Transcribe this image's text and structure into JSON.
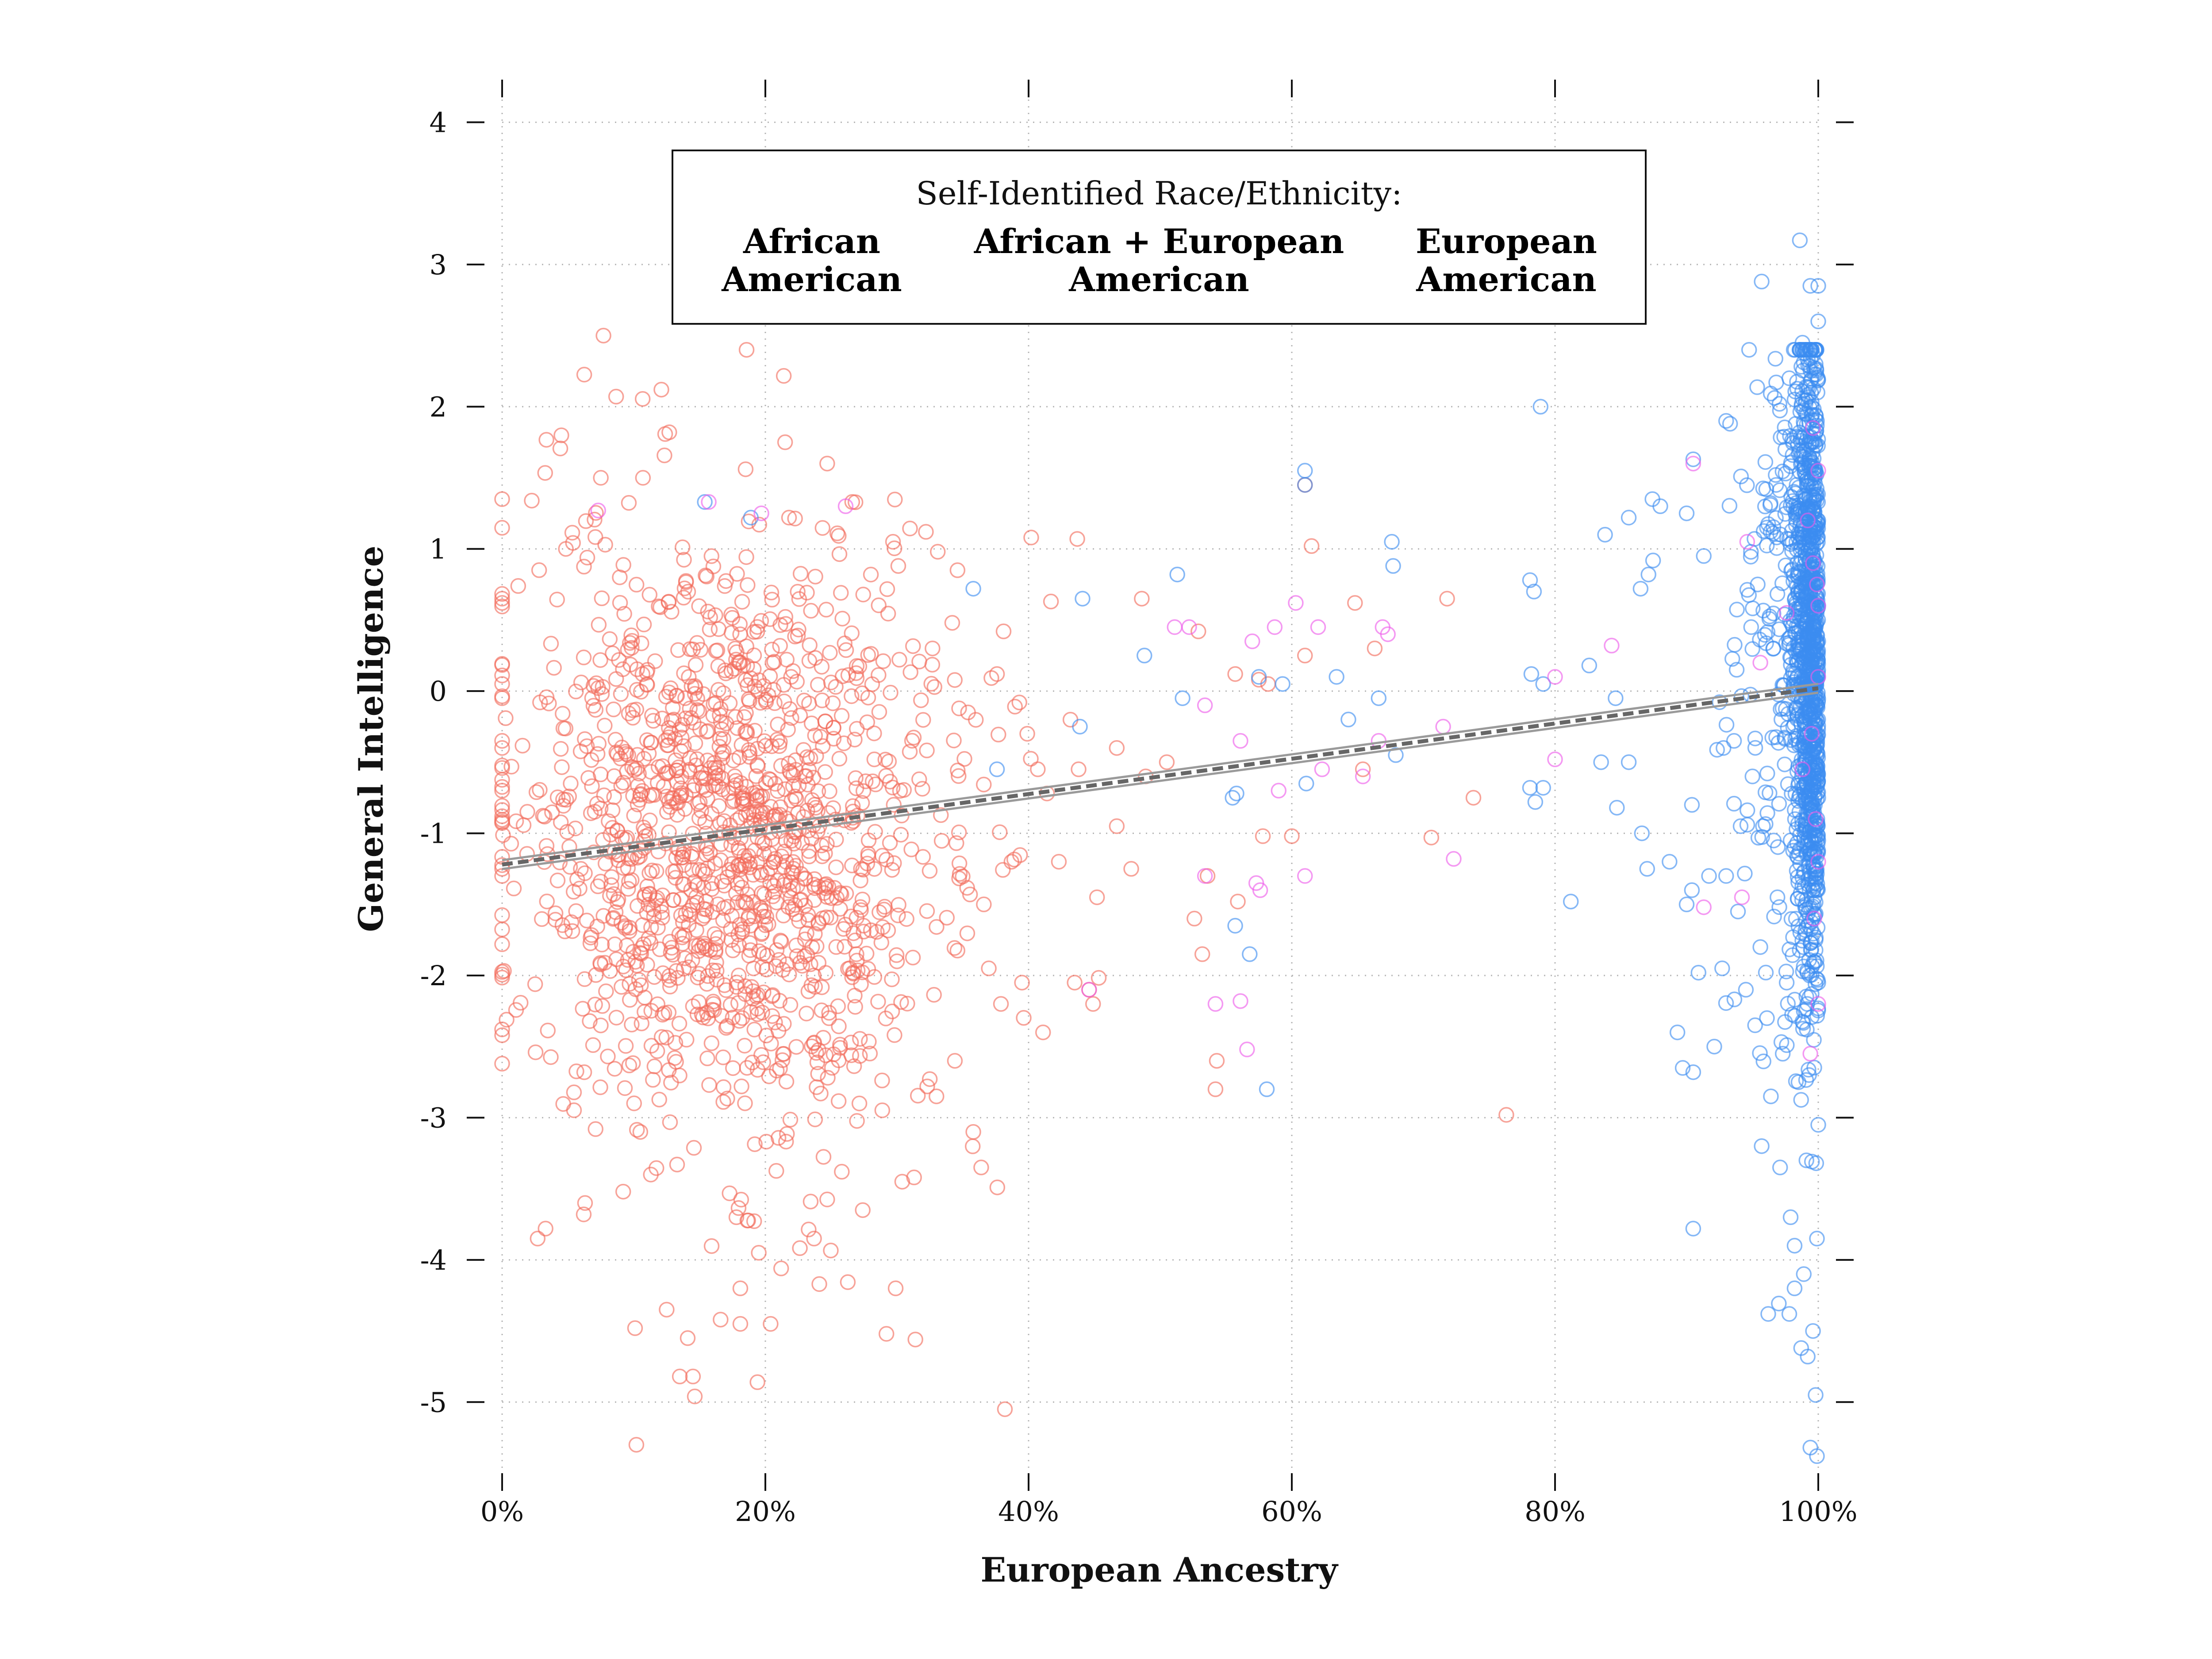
{
  "chart_data": {
    "type": "scatter",
    "title": "",
    "xlabel": "European Ancestry",
    "ylabel": "General Intelligence",
    "xlim": [
      0,
      100
    ],
    "ylim": [
      -5.5,
      4.3
    ],
    "x_ticks": [
      0,
      20,
      40,
      60,
      80,
      100
    ],
    "x_tick_labels": [
      "0%",
      "20%",
      "40%",
      "60%",
      "80%",
      "100%"
    ],
    "y_ticks": [
      4,
      3,
      2,
      1,
      0,
      -1,
      -2,
      -3,
      -4,
      -5
    ],
    "y_tick_labels": [
      "4",
      "3",
      "2",
      "1",
      "0",
      "-1",
      "-2",
      "-3",
      "-4",
      "-5"
    ],
    "grid": true,
    "legend": {
      "placement": "top-center",
      "title": "Self-Identified Race/Ethnicity:",
      "entries": [
        {
          "line1": "African",
          "line2": "American",
          "color": "#F26B5B"
        },
        {
          "line1": "African + European",
          "line2": "American",
          "color": "#EE5BEA"
        },
        {
          "line1": "European",
          "line2": "American",
          "color": "#3B8CF0"
        }
      ]
    },
    "trend_line": {
      "x": [
        0,
        100
      ],
      "y": [
        -1.22,
        0.02
      ],
      "color": "#666666",
      "style": "dashed"
    },
    "series": [
      {
        "name": "African American",
        "color": "#F26B5B",
        "cluster": {
          "mean_x": 17,
          "sd_x": 8,
          "mean_y": -1.0,
          "sd_y": 1.05
        },
        "points": [
          [
            0,
            1.35
          ],
          [
            0,
            0.65
          ],
          [
            0,
            0.62
          ],
          [
            0,
            0.05
          ],
          [
            0,
            -0.05
          ],
          [
            0,
            -0.35
          ],
          [
            0,
            -0.4
          ],
          [
            0,
            -0.7
          ],
          [
            0,
            -0.88
          ],
          [
            0,
            -1.25
          ],
          [
            0,
            -1.3
          ],
          [
            0,
            -1.78
          ],
          [
            0,
            -2.42
          ],
          [
            0,
            -2.62
          ],
          [
            7.7,
            2.5
          ],
          [
            12.1,
            2.12
          ],
          [
            12.7,
            1.82
          ],
          [
            18.5,
            1.56
          ],
          [
            21.5,
            1.75
          ],
          [
            24.7,
            1.6
          ],
          [
            7.5,
            1.5
          ],
          [
            10.7,
            1.5
          ],
          [
            26.6,
            1.33
          ],
          [
            40.2,
            1.08
          ],
          [
            43.7,
            1.07
          ],
          [
            10.2,
            -5.3
          ],
          [
            38.2,
            -5.05
          ],
          [
            19.4,
            -4.86
          ],
          [
            13.5,
            -4.82
          ],
          [
            14.5,
            -4.82
          ],
          [
            10.1,
            -4.48
          ],
          [
            31.4,
            -4.56
          ],
          [
            14.1,
            -4.55
          ],
          [
            18.1,
            -4.45
          ],
          [
            29.2,
            -4.52
          ],
          [
            12.5,
            -4.35
          ],
          [
            16.6,
            -4.42
          ],
          [
            20.4,
            -4.45
          ],
          [
            24.1,
            -4.17
          ],
          [
            29.9,
            -4.2
          ],
          [
            18.1,
            -4.2
          ],
          [
            21.2,
            -4.06
          ],
          [
            19.5,
            -3.95
          ],
          [
            23.7,
            -3.85
          ],
          [
            2.7,
            -3.85
          ],
          [
            3.3,
            -3.78
          ],
          [
            6.2,
            -3.68
          ],
          [
            6.3,
            -3.6
          ],
          [
            9.2,
            -3.52
          ],
          [
            11.3,
            -3.4
          ],
          [
            17.8,
            -3.7
          ],
          [
            27.4,
            -3.65
          ],
          [
            30.4,
            -3.45
          ],
          [
            31.3,
            -3.42
          ],
          [
            36.4,
            -3.35
          ],
          [
            35.8,
            -3.1
          ],
          [
            76.3,
            -2.98
          ],
          [
            7.1,
            -3.08
          ],
          [
            10.5,
            -3.1
          ],
          [
            32.3,
            -2.78
          ],
          [
            33.0,
            -2.85
          ],
          [
            34.4,
            -2.6
          ],
          [
            41.1,
            -2.4
          ],
          [
            44.9,
            -2.2
          ],
          [
            44.6,
            -2.1
          ],
          [
            37.9,
            -2.2
          ],
          [
            39.5,
            -2.05
          ],
          [
            43.5,
            -2.05
          ],
          [
            53.2,
            -1.85
          ],
          [
            52.6,
            -1.6
          ],
          [
            47.8,
            -1.25
          ],
          [
            53.6,
            -1.3
          ],
          [
            55.9,
            -1.48
          ],
          [
            45.2,
            -1.45
          ],
          [
            36.6,
            -1.5
          ],
          [
            38.7,
            -1.2
          ],
          [
            42.3,
            -1.2
          ],
          [
            46.7,
            -0.95
          ],
          [
            57.8,
            -1.02
          ],
          [
            60.0,
            -1.02
          ],
          [
            70.6,
            -1.03
          ],
          [
            65.4,
            -0.55
          ],
          [
            73.8,
            -0.75
          ],
          [
            54.3,
            -2.6
          ],
          [
            54.2,
            -2.8
          ],
          [
            41.4,
            -0.72
          ],
          [
            43.8,
            -0.55
          ],
          [
            40.7,
            -0.55
          ],
          [
            39.9,
            -0.3
          ],
          [
            46.7,
            -0.4
          ],
          [
            48.9,
            -0.6
          ],
          [
            50.5,
            -0.5
          ],
          [
            52.9,
            0.42
          ],
          [
            55.7,
            0.12
          ],
          [
            57.5,
            0.08
          ],
          [
            58.2,
            0.05
          ],
          [
            61.0,
            0.25
          ],
          [
            64.8,
            0.62
          ],
          [
            66.3,
            0.3
          ],
          [
            61.5,
            1.02
          ],
          [
            61.0,
            1.45
          ],
          [
            71.8,
            0.65
          ],
          [
            48.6,
            0.65
          ],
          [
            41.7,
            0.63
          ],
          [
            38.1,
            0.42
          ],
          [
            37.6,
            0.12
          ],
          [
            39.3,
            -0.08
          ],
          [
            35.4,
            -0.15
          ],
          [
            32.7,
            0.3
          ],
          [
            34.2,
            0.48
          ],
          [
            33.1,
            0.98
          ],
          [
            34.6,
            0.85
          ],
          [
            32.2,
            1.12
          ],
          [
            29.7,
            1.05
          ],
          [
            30.1,
            0.88
          ]
        ]
      },
      {
        "name": "African + European American",
        "color": "#EE5BEA",
        "points": [
          [
            7.3,
            1.27
          ],
          [
            15.7,
            1.33
          ],
          [
            26.1,
            1.3
          ],
          [
            19.7,
            1.25
          ],
          [
            51.1,
            0.45
          ],
          [
            52.2,
            0.45
          ],
          [
            57.0,
            0.35
          ],
          [
            58.7,
            0.45
          ],
          [
            62.0,
            0.45
          ],
          [
            66.9,
            0.45
          ],
          [
            67.3,
            0.4
          ],
          [
            60.3,
            0.62
          ],
          [
            53.4,
            -0.1
          ],
          [
            56.1,
            -0.35
          ],
          [
            59.0,
            -0.7
          ],
          [
            61.0,
            -1.3
          ],
          [
            57.3,
            -1.35
          ],
          [
            57.6,
            -1.4
          ],
          [
            53.4,
            -1.3
          ],
          [
            56.1,
            -2.18
          ],
          [
            54.2,
            -2.2
          ],
          [
            56.6,
            -2.52
          ],
          [
            62.3,
            -0.55
          ],
          [
            65.4,
            -0.6
          ],
          [
            66.6,
            -0.35
          ],
          [
            71.5,
            -0.25
          ],
          [
            72.3,
            -1.18
          ],
          [
            80.0,
            -0.48
          ],
          [
            80.0,
            0.1
          ],
          [
            84.3,
            0.32
          ],
          [
            90.5,
            1.6
          ],
          [
            94.6,
            1.05
          ],
          [
            91.3,
            -1.52
          ],
          [
            94.2,
            -1.45
          ],
          [
            95.6,
            0.2
          ],
          [
            97.6,
            0.55
          ],
          [
            99.6,
            0.9
          ],
          [
            99.9,
            0.75
          ],
          [
            100,
            0.6
          ],
          [
            99.5,
            -0.3
          ],
          [
            99.8,
            -0.9
          ],
          [
            100,
            -1.2
          ],
          [
            99.7,
            -1.6
          ],
          [
            100,
            1.55
          ],
          [
            99.6,
            1.85
          ],
          [
            100,
            -2.2
          ],
          [
            99.4,
            -2.55
          ],
          [
            100,
            0.1
          ],
          [
            99.2,
            1.2
          ],
          [
            98.8,
            -0.55
          ],
          [
            44.6,
            -2.1
          ]
        ]
      },
      {
        "name": "European American",
        "color": "#3B8CF0",
        "cluster": {
          "mean_x": 99.2,
          "sd_x": 0.9,
          "mean_y": 0.2,
          "sd_y": 1.15
        },
        "points": [
          [
            98.6,
            3.17
          ],
          [
            95.7,
            2.88
          ],
          [
            99.4,
            2.85
          ],
          [
            100,
            2.85
          ],
          [
            100,
            2.6
          ],
          [
            99.8,
            2.3
          ],
          [
            97.8,
            2.2
          ],
          [
            78.9,
            2.0
          ],
          [
            61.0,
            1.55
          ],
          [
            61.0,
            1.45
          ],
          [
            18.9,
            1.22
          ],
          [
            15.4,
            1.33
          ],
          [
            93.3,
            1.88
          ],
          [
            93.0,
            1.9
          ],
          [
            90.5,
            1.63
          ],
          [
            87.4,
            1.35
          ],
          [
            88.0,
            1.3
          ],
          [
            85.6,
            1.22
          ],
          [
            83.8,
            1.1
          ],
          [
            90.0,
            1.25
          ],
          [
            91.3,
            0.95
          ],
          [
            87.1,
            0.82
          ],
          [
            86.5,
            0.72
          ],
          [
            78.1,
            0.78
          ],
          [
            78.4,
            0.7
          ],
          [
            67.6,
            1.05
          ],
          [
            67.7,
            0.88
          ],
          [
            51.3,
            0.82
          ],
          [
            44.1,
            0.65
          ],
          [
            35.8,
            0.72
          ],
          [
            48.8,
            0.25
          ],
          [
            51.7,
            -0.05
          ],
          [
            57.5,
            0.1
          ],
          [
            59.3,
            0.05
          ],
          [
            63.4,
            0.1
          ],
          [
            78.2,
            0.12
          ],
          [
            79.1,
            0.05
          ],
          [
            82.6,
            0.18
          ],
          [
            84.6,
            -0.05
          ],
          [
            85.6,
            -0.5
          ],
          [
            83.5,
            -0.5
          ],
          [
            84.7,
            -0.82
          ],
          [
            64.3,
            -0.2
          ],
          [
            61.1,
            -0.65
          ],
          [
            55.5,
            -0.75
          ],
          [
            55.8,
            -0.72
          ],
          [
            43.9,
            -0.25
          ],
          [
            37.6,
            -0.55
          ],
          [
            66.6,
            -0.05
          ],
          [
            67.9,
            -0.45
          ],
          [
            78.1,
            -0.68
          ],
          [
            78.5,
            -0.78
          ],
          [
            79.1,
            -0.68
          ],
          [
            81.2,
            -1.48
          ],
          [
            86.6,
            -1.0
          ],
          [
            88.7,
            -1.2
          ],
          [
            87.0,
            -1.25
          ],
          [
            90.4,
            -0.8
          ],
          [
            91.7,
            -1.3
          ],
          [
            90.4,
            -1.4
          ],
          [
            55.7,
            -1.65
          ],
          [
            56.8,
            -1.85
          ],
          [
            58.1,
            -2.8
          ],
          [
            90.0,
            -1.5
          ],
          [
            90.9,
            -1.98
          ],
          [
            92.7,
            -1.95
          ],
          [
            92.1,
            -2.5
          ],
          [
            89.3,
            -2.4
          ],
          [
            89.7,
            -2.65
          ],
          [
            90.5,
            -2.68
          ],
          [
            90.5,
            -3.78
          ],
          [
            95.7,
            -3.2
          ],
          [
            96.4,
            -2.85
          ],
          [
            97.1,
            -3.35
          ],
          [
            97.9,
            -3.7
          ],
          [
            98.2,
            -3.9
          ],
          [
            98.2,
            -4.2
          ],
          [
            97.8,
            -4.38
          ],
          [
            98.7,
            -4.62
          ],
          [
            99.2,
            -4.68
          ],
          [
            99.6,
            -4.5
          ],
          [
            99.8,
            -4.95
          ],
          [
            99.4,
            -5.32
          ],
          [
            99.9,
            -5.38
          ],
          [
            96.2,
            -4.38
          ],
          [
            98.9,
            -4.1
          ],
          [
            99.9,
            -3.85
          ],
          [
            99.1,
            -3.3
          ],
          [
            98.5,
            -2.75
          ],
          [
            97.3,
            -2.55
          ],
          [
            96.1,
            -2.3
          ],
          [
            95.2,
            -2.35
          ],
          [
            94.5,
            -2.1
          ],
          [
            95.6,
            -1.8
          ],
          [
            93.9,
            -1.55
          ],
          [
            93.0,
            -1.3
          ],
          [
            94.1,
            -0.95
          ],
          [
            95.0,
            -0.6
          ],
          [
            93.6,
            -0.35
          ],
          [
            92.8,
            -0.4
          ],
          [
            93.8,
            0.15
          ],
          [
            94.9,
            0.45
          ],
          [
            95.4,
            0.75
          ],
          [
            96.1,
            1.15
          ],
          [
            96.8,
            1.45
          ],
          [
            97.5,
            1.7
          ],
          [
            98.2,
            2.05
          ],
          [
            98.8,
            2.45
          ],
          [
            99.5,
            2.0
          ],
          [
            100,
            1.2
          ],
          [
            99.7,
            0.55
          ],
          [
            99.9,
            -0.1
          ],
          [
            100,
            -0.75
          ],
          [
            99.6,
            -1.4
          ],
          [
            100,
            -2.05
          ],
          [
            99.3,
            -2.7
          ],
          [
            100,
            -3.05
          ],
          [
            97.9,
            -1.05
          ],
          [
            97.2,
            -0.2
          ],
          [
            96.6,
            0.3
          ],
          [
            98.4,
            0.9
          ],
          [
            99.0,
            1.35
          ],
          [
            99.9,
            1.9
          ],
          [
            100,
            0.35
          ],
          [
            100,
            -1.05
          ],
          [
            99.8,
            -1.75
          ],
          [
            98.9,
            -2.25
          ],
          [
            97.6,
            -2.05
          ],
          [
            96.9,
            -1.45
          ],
          [
            95.8,
            -0.95
          ]
        ]
      }
    ]
  }
}
